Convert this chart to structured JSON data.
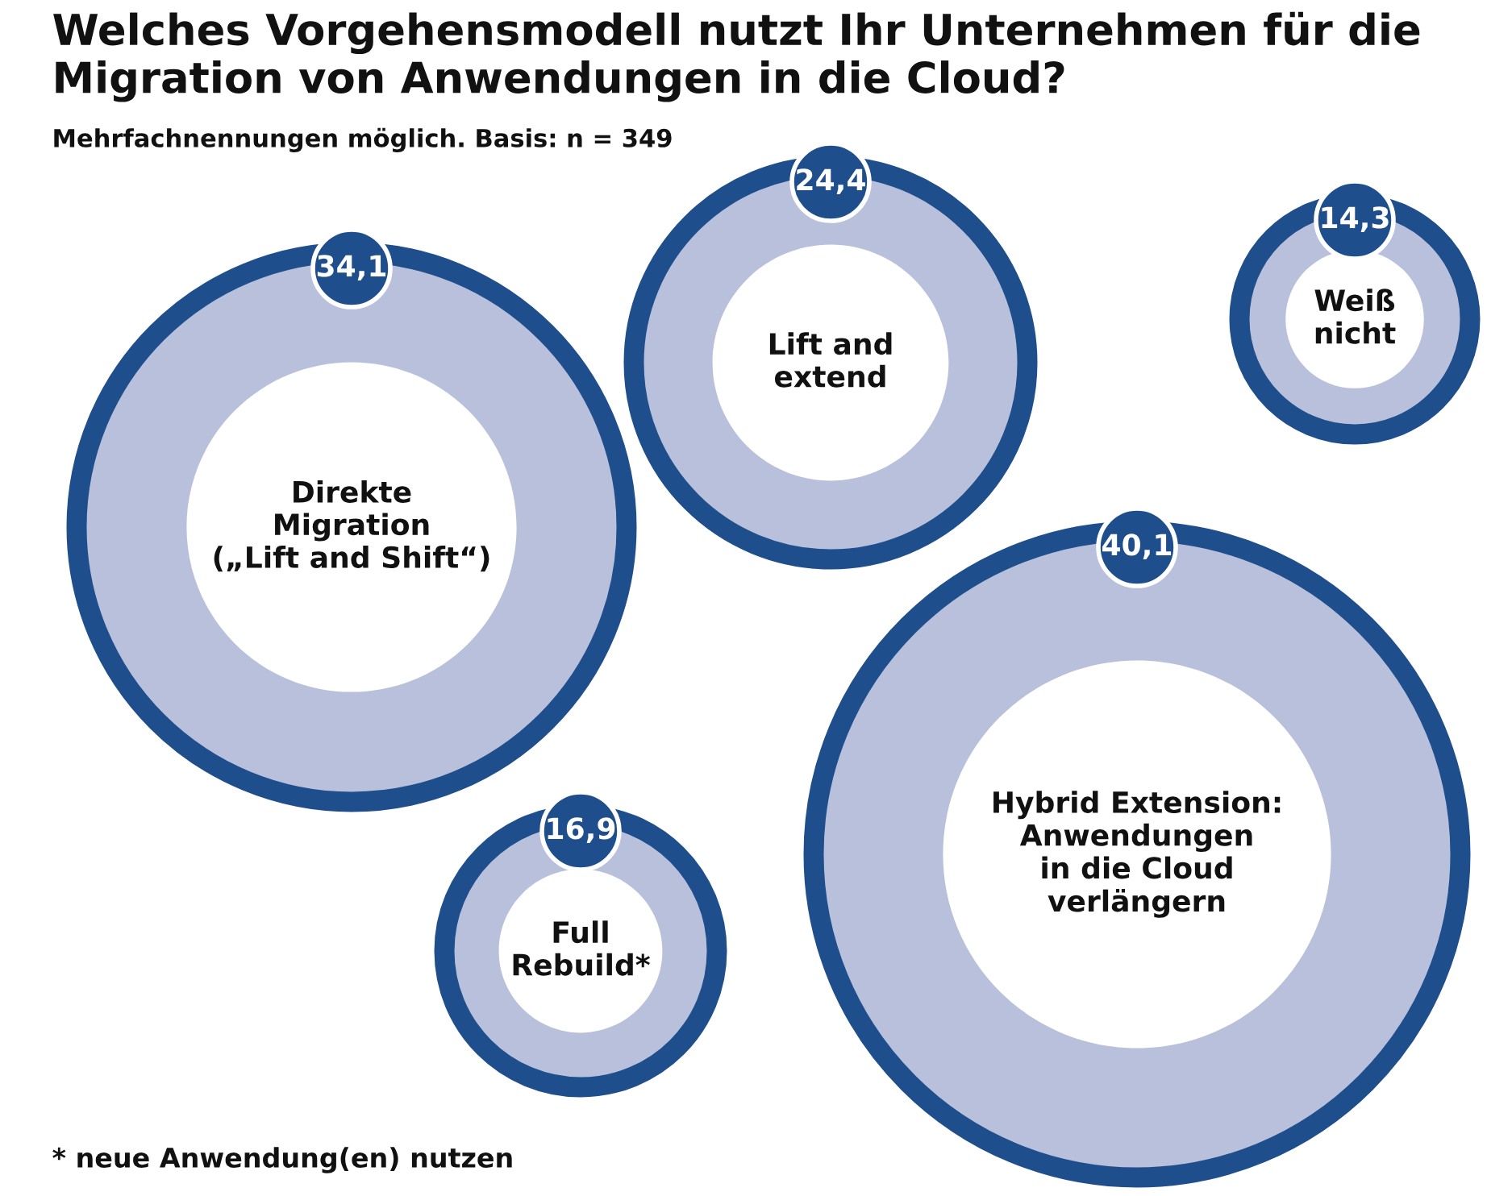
{
  "chart_data": {
    "type": "other",
    "title": "Welches Vorgehensmodell nutzt Ihr Unternehmen für die Migration von Anwendungen in die Cloud?",
    "subtitle": "Mehrfachnennungen möglich. Basis: n = 349",
    "categories": [
      "Direkte\nMigration\n(„Lift and Shift“)",
      "Lift and\nextend",
      "Weiß\nnicht",
      "Hybrid Extension:\nAnwendungen\nin die Cloud\nverlängern",
      "Full\nRebuild*"
    ],
    "values": [
      34.1,
      24.4,
      14.3,
      40.1,
      16.9
    ],
    "value_labels": [
      "34,1",
      "24,4",
      "14,3",
      "40,1",
      "16,9"
    ],
    "color": "#1f4e8c",
    "annotations": [
      "* neue Anwendung(en) nutzen"
    ]
  }
}
